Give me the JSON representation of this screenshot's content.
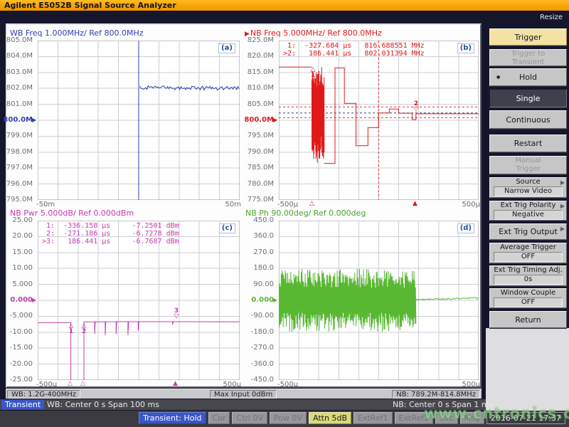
{
  "title_bar": {
    "title": "Agilent E5052B Signal Source Analyzer"
  },
  "resize_label": "Resize",
  "chart_data": {
    "plots": {
      "a": {
        "type": "line",
        "label": "(a)",
        "title": "WB Freq 1.000MHz/ Ref 800.0MHz",
        "active_marker": "",
        "color": "#2f3fae",
        "x_range": [
          -50,
          50
        ],
        "y_range": [
          795,
          805
        ],
        "x_ticks": [
          "-50m",
          "50m"
        ],
        "y_ticks": [
          "805.0M",
          "804.0M",
          "803.0M",
          "802.0M",
          "801.0M",
          "800.0M",
          "799.0M",
          "798.0M",
          "797.0M",
          "796.0M",
          "795.0M"
        ],
        "ref_index": 5,
        "trace": [
          {
            "type": "line",
            "points": [
              [
                0,
                805
              ],
              [
                0,
                795
              ]
            ]
          },
          {
            "type": "noisy",
            "x0": 0.5,
            "x1": 50,
            "y0": 802.05,
            "y1": 802.0,
            "amp": 0.12,
            "step": 0.6,
            "seed": 4
          }
        ]
      },
      "b": {
        "type": "line",
        "label": "(b)",
        "title": "NB Freq 5.000MHz/ Ref 800.0MHz",
        "active_marker": "▶",
        "color": "#e01818",
        "x_range": [
          -500,
          500
        ],
        "y_range": [
          775,
          825
        ],
        "x_ticks": [
          "-500µ",
          "500µ"
        ],
        "y_ticks": [
          "825.0M",
          "820.0M",
          "815.0M",
          "810.0M",
          "805.0M",
          "800.0M",
          "795.0M",
          "790.0M",
          "785.0M",
          "780.0M",
          "775.0M"
        ],
        "ref_index": 5,
        "readout": [
          " 1:  -327.684 µs   816.688551 MHz",
          ">2:   186.441 µs   802.031394 MHz"
        ],
        "dashed_h": [
          {
            "y": 804.2,
            "color": "#e03030"
          },
          {
            "y": 802.3,
            "color": "#33447f"
          },
          {
            "y": 800.8,
            "color": "#e03030"
          }
        ],
        "dashed_v": [
          {
            "x": 0,
            "color": "#e03030"
          }
        ],
        "trace": [
          {
            "type": "line",
            "points": [
              [
                -500,
                816.7
              ],
              [
                -335,
                816.7
              ]
            ]
          },
          {
            "type": "osc",
            "x0": -335,
            "x1": -273,
            "ymin": 786.5,
            "ymax": 816.8,
            "step": 1.7,
            "seed": 11
          },
          {
            "type": "line",
            "points": [
              [
                -273,
                786.5
              ],
              [
                -219,
                786.5
              ],
              [
                -219,
                816.4
              ],
              [
                -172,
                816.4
              ],
              [
                -172,
                805.3
              ],
              [
                -114,
                805.3
              ],
              [
                -114,
                792
              ],
              [
                -54,
                792
              ],
              [
                -54,
                797.7
              ],
              [
                -1,
                797.7
              ],
              [
                -1,
                802.3
              ],
              [
                53,
                802.3
              ],
              [
                53,
                803.5
              ],
              [
                100,
                803.5
              ],
              [
                100,
                802.2
              ],
              [
                168,
                802.2
              ],
              [
                168,
                800.2
              ],
              [
                186,
                800.2
              ],
              [
                186,
                802.03
              ],
              [
                500,
                802.03
              ]
            ]
          }
        ],
        "markers": [
          {
            "x": -327.7,
            "y": 815.8,
            "num": "1",
            "tri": "up",
            "pos": "below"
          },
          {
            "x": 186,
            "y": 803.2,
            "num": "2",
            "tri": "down",
            "pos": "above"
          }
        ],
        "axis_markers": [
          {
            "x": -330,
            "filled": false
          },
          {
            "x": 186,
            "filled": true
          }
        ]
      },
      "c": {
        "type": "line",
        "label": "(c)",
        "title": "NB Pwr 5.000dB/ Ref 0.000dBm",
        "active_marker": "",
        "color": "#c53cae",
        "x_range": [
          -500,
          500
        ],
        "y_range": [
          -25,
          25
        ],
        "x_ticks": [
          "-500µ",
          "500µ"
        ],
        "y_ticks": [
          "25.00",
          "20.00",
          "15.00",
          "10.00",
          "5.000",
          "0.000",
          "-5.000",
          "-10.00",
          "-15.00",
          "-20.00",
          "-25.00"
        ],
        "ref_index": 5,
        "readout": [
          " 1:  -336.158 µs     -7.2501 dBm",
          " 2:  -271.186 µs     -6.7278 dBm",
          ">3:   186.441 µs     -6.7687 dBm"
        ],
        "trace": [
          {
            "type": "line",
            "points": [
              [
                -500,
                -7.0
              ],
              [
                -336,
                -7.0
              ],
              [
                -336,
                -26
              ],
              [
                -271,
                -26
              ],
              [
                -271,
                -6.73
              ],
              [
                -218,
                -6.73
              ],
              [
                -218,
                -10.5
              ],
              [
                -215,
                -6.73
              ],
              [
                -166,
                -6.73
              ],
              [
                -166,
                -11
              ],
              [
                -163,
                -6.73
              ],
              [
                -112,
                -6.7
              ],
              [
                -112,
                -10.6
              ],
              [
                -109,
                -6.7
              ],
              [
                -53,
                -6.7
              ],
              [
                -53,
                -10.9
              ],
              [
                -50,
                -6.7
              ],
              [
                -2,
                -6.7
              ],
              [
                -2,
                -9.6
              ],
              [
                1,
                -6.7
              ],
              [
                168,
                -6.7
              ],
              [
                168,
                -7.6
              ],
              [
                172,
                -6.7
              ],
              [
                500,
                -6.77
              ]
            ]
          }
        ],
        "markers": [
          {
            "x": -336,
            "y": -8.0,
            "num": "1",
            "tri": "up",
            "pos": "below"
          },
          {
            "x": -271,
            "y": -8.0,
            "num": "2",
            "tri": "up",
            "pos": "below"
          },
          {
            "x": 186,
            "y": -5.3,
            "num": "3",
            "tri": "down",
            "pos": "above"
          }
        ],
        "axis_markers": [
          {
            "x": -336,
            "filled": false
          },
          {
            "x": -271,
            "filled": false
          },
          {
            "x": 186,
            "filled": true
          }
        ]
      },
      "d": {
        "type": "line",
        "label": "(d)",
        "title": "NB Ph 90.00deg/ Ref 0.000deg",
        "active_marker": "",
        "color": "#58b832",
        "x_range": [
          -500,
          500
        ],
        "y_range": [
          -450,
          450
        ],
        "x_ticks": [
          "-500µ",
          "500µ"
        ],
        "y_ticks": [
          "450.0",
          "360.0",
          "270.0",
          "180.0",
          "90.00",
          "0.000",
          "-90.00",
          "-180.0",
          "-270.0",
          "-360.0",
          "-450.0"
        ],
        "ref_index": 5,
        "trace": [
          {
            "type": "osc",
            "x0": -500,
            "x1": 186,
            "ymin": -178,
            "ymax": 178,
            "step": 4,
            "seed": 5
          },
          {
            "type": "noisy",
            "x0": 186,
            "x1": 500,
            "y0": 3,
            "y1": 13,
            "amp": 5,
            "step": 5,
            "seed": 9
          }
        ]
      }
    }
  },
  "sidebar": {
    "buttons": [
      {
        "label": "Trigger"
      },
      {
        "line1": "Trigger to",
        "line2": "Transient"
      },
      {
        "label": "Hold"
      },
      {
        "label": "Single"
      },
      {
        "label": "Continuous"
      },
      {
        "label": "Restart"
      },
      {
        "line1": "Manual",
        "line2": "Trigger"
      },
      {
        "line1": "Source",
        "value": "Narrow Video"
      },
      {
        "line1": "Ext Trig Polarity",
        "value": "Negative"
      },
      {
        "label": "Ext Trig Output"
      },
      {
        "line1": "Average Trigger",
        "value": "OFF"
      },
      {
        "line1": "Ext Trig Timing Adj.",
        "value": "0s"
      },
      {
        "line1": "Window Couple",
        "value": "OFF"
      },
      {
        "label": "Return"
      }
    ]
  },
  "status": {
    "bar1": {
      "wb": "WB: 1.2G-400MHz",
      "max_input": "Max Input 0dBm",
      "nb": "NB: 789.2M-814.8MHz"
    },
    "bar2": {
      "mode": "Transient",
      "wb": "WB: Center 0 s  Span 100 ms",
      "nb": "NB: Center 0 s  Span 1 ms"
    },
    "bar3": {
      "items": [
        {
          "label": "Transient: Hold",
          "style": "blue",
          "name": "status-transient-hold"
        },
        {
          "label": "Cor",
          "style": "disabled",
          "name": "status-correction"
        },
        {
          "label": "Ctrl 0V",
          "style": "disabled",
          "name": "status-ctrl-voltage"
        },
        {
          "label": "Pow 0V",
          "style": "disabled",
          "name": "status-pow-voltage"
        },
        {
          "label": "Attn 5dB",
          "style": "attn",
          "name": "status-attenuator"
        },
        {
          "label": "ExtRef1",
          "style": "disabled",
          "name": "status-extref1"
        },
        {
          "label": "ExtRef2",
          "style": "disabled",
          "name": "status-extref2"
        },
        {
          "label": "Svc",
          "style": "disabled",
          "name": "status-svc"
        },
        {
          "label": "Msg",
          "style": "disabled",
          "name": "status-msg"
        },
        {
          "label": "2016-07-21 17:37",
          "style": "clock",
          "name": "status-clock"
        }
      ]
    }
  },
  "watermark": "www.cntronics.com"
}
